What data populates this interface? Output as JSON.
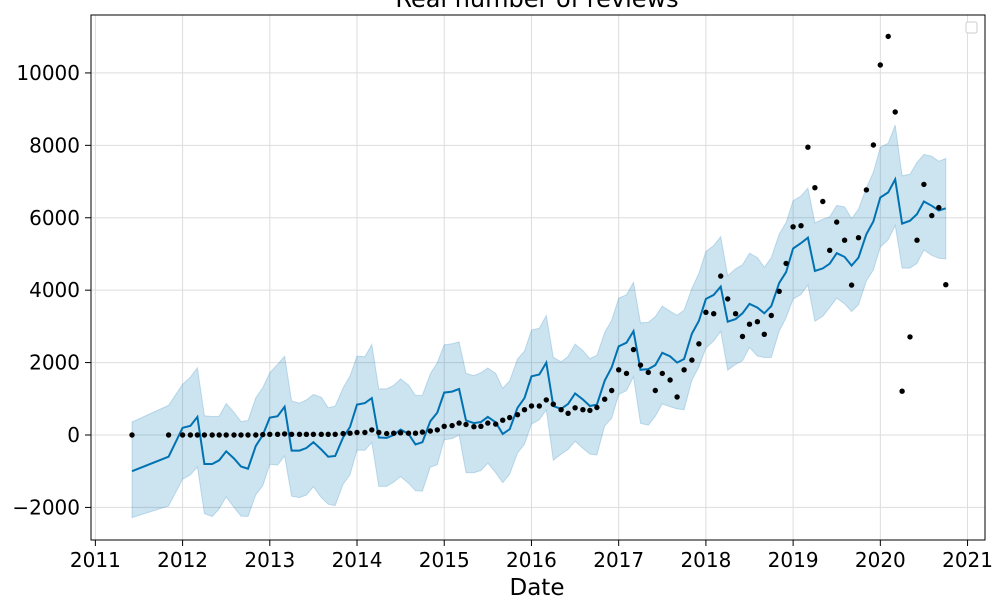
{
  "chart_data": {
    "type": "line",
    "title": "Real number of reviews",
    "xlabel": "Date",
    "ylabel": "",
    "xlim": [
      2010.95,
      2021.2
    ],
    "ylim": [
      -2900,
      11600
    ],
    "x_ticks": [
      2011,
      2012,
      2013,
      2014,
      2015,
      2016,
      2017,
      2018,
      2019,
      2020,
      2021
    ],
    "y_ticks": [
      -2000,
      0,
      2000,
      4000,
      6000,
      8000,
      10000
    ],
    "y_tick_labels": [
      "−2000",
      "0",
      "2000",
      "4000",
      "6000",
      "8000",
      "10000"
    ],
    "grid": true,
    "legend": "upper right (empty)",
    "colors": {
      "forecast_line": "#0072B2",
      "uncertainty_band": "#0072B2",
      "observed_points": "#000000"
    },
    "series": [
      {
        "kind": "forecast",
        "x": [
          2011.42,
          2011.84,
          2012.0,
          2012.09,
          2012.17,
          2012.25,
          2012.34,
          2012.42,
          2012.5,
          2012.59,
          2012.67,
          2012.75,
          2012.84,
          2012.92,
          2013.0,
          2013.09,
          2013.17,
          2013.25,
          2013.34,
          2013.42,
          2013.5,
          2013.59,
          2013.67,
          2013.75,
          2013.84,
          2013.92,
          2014.0,
          2014.09,
          2014.17,
          2014.25,
          2014.34,
          2014.42,
          2014.5,
          2014.59,
          2014.67,
          2014.75,
          2014.84,
          2014.92,
          2015.0,
          2015.09,
          2015.17,
          2015.25,
          2015.34,
          2015.42,
          2015.5,
          2015.59,
          2015.67,
          2015.75,
          2015.84,
          2015.92,
          2016.0,
          2016.09,
          2016.17,
          2016.25,
          2016.34,
          2016.42,
          2016.5,
          2016.59,
          2016.67,
          2016.75,
          2016.84,
          2016.92,
          2017.0,
          2017.09,
          2017.17,
          2017.25,
          2017.34,
          2017.42,
          2017.5,
          2017.59,
          2017.67,
          2017.75,
          2017.84,
          2017.92,
          2018.0,
          2018.09,
          2018.17,
          2018.25,
          2018.34,
          2018.42,
          2018.5,
          2018.59,
          2018.67,
          2018.75,
          2018.84,
          2018.92,
          2019.0,
          2019.09,
          2019.17,
          2019.25,
          2019.34,
          2019.42,
          2019.5,
          2019.59,
          2019.67,
          2019.75,
          2019.84,
          2019.92,
          2020.0,
          2020.09,
          2020.17,
          2020.25,
          2020.34,
          2020.42,
          2020.5,
          2020.59,
          2020.67,
          2020.75
        ],
        "y": [
          -1000,
          -600,
          200,
          250,
          500,
          -800,
          -800,
          -700,
          -450,
          -650,
          -870,
          -930,
          -300,
          0,
          480,
          520,
          780,
          -430,
          -430,
          -360,
          -200,
          -400,
          -600,
          -580,
          -70,
          220,
          840,
          880,
          1020,
          -70,
          -80,
          0,
          150,
          30,
          -260,
          -200,
          380,
          620,
          1170,
          1200,
          1270,
          400,
          330,
          360,
          500,
          350,
          30,
          160,
          750,
          1020,
          1620,
          1670,
          2000,
          800,
          720,
          860,
          1150,
          980,
          800,
          840,
          1500,
          1870,
          2450,
          2550,
          2870,
          1800,
          1820,
          1930,
          2270,
          2170,
          2000,
          2100,
          2800,
          3150,
          3760,
          3870,
          4100,
          3130,
          3200,
          3360,
          3620,
          3520,
          3360,
          3560,
          4200,
          4500,
          5150,
          5300,
          5450,
          4530,
          4600,
          4730,
          5020,
          4920,
          4680,
          4900,
          5550,
          5900,
          6560,
          6700,
          7060,
          5840,
          5920,
          6100,
          6450,
          6330,
          6200,
          6260
        ]
      },
      {
        "kind": "uncertainty_upper",
        "y": [
          360,
          820,
          1400,
          1600,
          1860,
          530,
          510,
          520,
          870,
          630,
          370,
          400,
          1030,
          1310,
          1720,
          1950,
          2180,
          940,
          880,
          970,
          1120,
          1040,
          750,
          800,
          1300,
          1630,
          2180,
          2160,
          2500,
          1270,
          1280,
          1370,
          1550,
          1380,
          1090,
          1100,
          1690,
          2000,
          2490,
          2520,
          2570,
          1700,
          1640,
          1720,
          1850,
          1700,
          1290,
          1500,
          2100,
          2320,
          2900,
          2950,
          3300,
          2150,
          2020,
          2170,
          2510,
          2330,
          2110,
          2200,
          2830,
          3170,
          3780,
          3870,
          4220,
          3100,
          3110,
          3270,
          3560,
          3420,
          3310,
          3450,
          4050,
          4470,
          5070,
          5230,
          5480,
          4400,
          4590,
          4700,
          5020,
          4900,
          4630,
          4900,
          5550,
          5870,
          6470,
          6600,
          6820,
          5860,
          5960,
          6030,
          6340,
          6300,
          5980,
          6240,
          6830,
          7260,
          7950,
          8060,
          8560,
          7160,
          7200,
          7530,
          7750,
          7700,
          7560,
          7640
        ]
      },
      {
        "kind": "uncertainty_lower",
        "y": [
          -2280,
          -1960,
          -1220,
          -1100,
          -880,
          -2170,
          -2250,
          -2040,
          -1710,
          -2000,
          -2240,
          -2250,
          -1650,
          -1400,
          -810,
          -830,
          -580,
          -1690,
          -1730,
          -1660,
          -1430,
          -1730,
          -1910,
          -1950,
          -1360,
          -1100,
          -420,
          -420,
          -210,
          -1420,
          -1420,
          -1300,
          -1150,
          -1330,
          -1540,
          -1550,
          -890,
          -820,
          -130,
          -100,
          0,
          -1040,
          -1040,
          -980,
          -780,
          -1040,
          -1320,
          -1080,
          -500,
          -250,
          300,
          420,
          690,
          -700,
          -530,
          -400,
          -170,
          -370,
          -530,
          -550,
          250,
          460,
          1120,
          1220,
          1610,
          320,
          270,
          520,
          860,
          780,
          720,
          700,
          1510,
          1880,
          2400,
          2600,
          2860,
          1790,
          1950,
          2050,
          2420,
          2180,
          2140,
          2140,
          2870,
          3240,
          3750,
          3880,
          4140,
          3140,
          3280,
          3520,
          3780,
          3620,
          3410,
          3600,
          4260,
          4560,
          5190,
          5390,
          5790,
          4610,
          4610,
          4740,
          5110,
          4960,
          4880,
          4860
        ]
      },
      {
        "kind": "observed",
        "x": [
          2011.42,
          2011.84,
          2012.0,
          2012.09,
          2012.17,
          2012.25,
          2012.34,
          2012.42,
          2012.5,
          2012.59,
          2012.67,
          2012.75,
          2012.84,
          2012.92,
          2013.0,
          2013.09,
          2013.17,
          2013.25,
          2013.34,
          2013.42,
          2013.5,
          2013.59,
          2013.67,
          2013.75,
          2013.84,
          2013.92,
          2014.0,
          2014.09,
          2014.17,
          2014.25,
          2014.34,
          2014.42,
          2014.5,
          2014.59,
          2014.67,
          2014.75,
          2014.84,
          2014.92,
          2015.0,
          2015.09,
          2015.17,
          2015.25,
          2015.34,
          2015.42,
          2015.5,
          2015.59,
          2015.67,
          2015.75,
          2015.84,
          2015.92,
          2016.0,
          2016.09,
          2016.17,
          2016.25,
          2016.34,
          2016.42,
          2016.5,
          2016.59,
          2016.67,
          2016.75,
          2016.84,
          2016.92,
          2017.0,
          2017.09,
          2017.17,
          2017.25,
          2017.34,
          2017.42,
          2017.5,
          2017.59,
          2017.67,
          2017.75,
          2017.84,
          2017.92,
          2018.0,
          2018.09,
          2018.17,
          2018.25,
          2018.34,
          2018.42,
          2018.5,
          2018.59,
          2018.67,
          2018.75,
          2018.84,
          2018.92,
          2019.0,
          2019.09,
          2019.17,
          2019.25,
          2019.34,
          2019.42,
          2019.5,
          2019.59,
          2019.67,
          2019.75,
          2019.84,
          2019.92,
          2020.0,
          2020.09,
          2020.17,
          2020.25,
          2020.34,
          2020.42,
          2020.5,
          2020.59,
          2020.67,
          2020.75
        ],
        "y": [
          0,
          0,
          0,
          0,
          0,
          0,
          0,
          0,
          0,
          0,
          0,
          0,
          0,
          10,
          20,
          20,
          30,
          20,
          20,
          20,
          20,
          20,
          20,
          20,
          40,
          50,
          70,
          70,
          140,
          70,
          40,
          50,
          60,
          50,
          50,
          80,
          110,
          140,
          240,
          260,
          330,
          290,
          230,
          240,
          330,
          300,
          410,
          480,
          560,
          700,
          800,
          800,
          970,
          850,
          700,
          600,
          750,
          700,
          680,
          760,
          990,
          1230,
          1800,
          1700,
          2360,
          1930,
          1730,
          1230,
          1700,
          1520,
          1050,
          1800,
          2070,
          2520,
          3390,
          3350,
          4390,
          3760,
          3350,
          2720,
          3060,
          3130,
          2780,
          3300,
          3970,
          4740,
          5750,
          5780,
          7950,
          6830,
          6450,
          5100,
          5880,
          5380,
          4140,
          5450,
          6770,
          8010,
          10220,
          11010,
          8920,
          1210,
          2710,
          5380,
          6920,
          6060,
          6280,
          4150
        ]
      }
    ]
  }
}
